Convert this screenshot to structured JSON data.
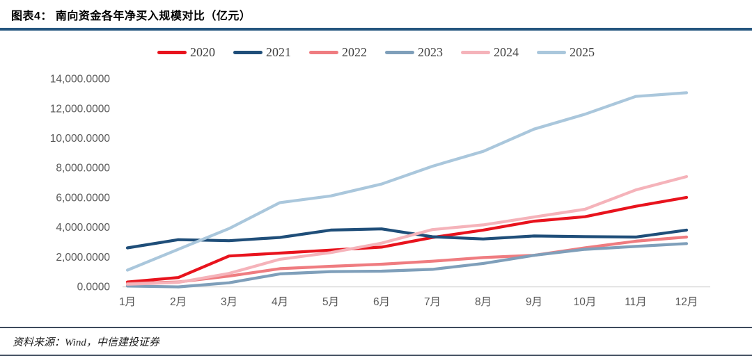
{
  "figure": {
    "title": "图表4：  南向资金各年净买入规模对比（亿元）",
    "source": "资料来源：Wind，中信建投证券"
  },
  "chart_data": {
    "type": "line",
    "title": "南向资金各年净买入规模对比（亿元）",
    "categories": [
      "1月",
      "2月",
      "3月",
      "4月",
      "5月",
      "6月",
      "7月",
      "8月",
      "9月",
      "10月",
      "11月",
      "12月"
    ],
    "series": [
      {
        "name": "2020",
        "color": "#e8131d",
        "values": [
          300,
          600,
          2050,
          2250,
          2450,
          2650,
          3300,
          3800,
          4400,
          4700,
          5400,
          6000
        ]
      },
      {
        "name": "2021",
        "color": "#1f4e79",
        "values": [
          2600,
          3150,
          3080,
          3300,
          3800,
          3880,
          3350,
          3200,
          3400,
          3360,
          3330,
          3800
        ]
      },
      {
        "name": "2022",
        "color": "#ef7c80",
        "values": [
          200,
          300,
          700,
          1200,
          1360,
          1500,
          1700,
          1950,
          2100,
          2600,
          3050,
          3330
        ]
      },
      {
        "name": "2023",
        "color": "#7f9fba",
        "values": [
          30,
          -30,
          250,
          850,
          1000,
          1030,
          1150,
          1550,
          2100,
          2500,
          2700,
          2890
        ]
      },
      {
        "name": "2024",
        "color": "#f5b3ba",
        "values": [
          150,
          270,
          880,
          1830,
          2280,
          2920,
          3830,
          4150,
          4680,
          5200,
          6500,
          7400
        ]
      },
      {
        "name": "2025",
        "color": "#aac7dc",
        "values": [
          1100,
          2500,
          3900,
          5650,
          6100,
          6900,
          8100,
          9100,
          10600,
          11600,
          12800,
          13050
        ]
      }
    ],
    "ylim": [
      0,
      14000
    ],
    "yticks": [
      {
        "value": 0,
        "label": "0.0000"
      },
      {
        "value": 2000,
        "label": "2,000.0000"
      },
      {
        "value": 4000,
        "label": "4,000.0000"
      },
      {
        "value": 6000,
        "label": "6,000.0000"
      },
      {
        "value": 8000,
        "label": "8,000.0000"
      },
      {
        "value": 10000,
        "label": "10,000.0000"
      },
      {
        "value": 12000,
        "label": "12,000.0000"
      },
      {
        "value": 14000,
        "label": "14,000.0000"
      }
    ],
    "grid": false,
    "legend_position": "top",
    "axis_color": "#d9d9d9",
    "tick_text_color": "#595959"
  }
}
